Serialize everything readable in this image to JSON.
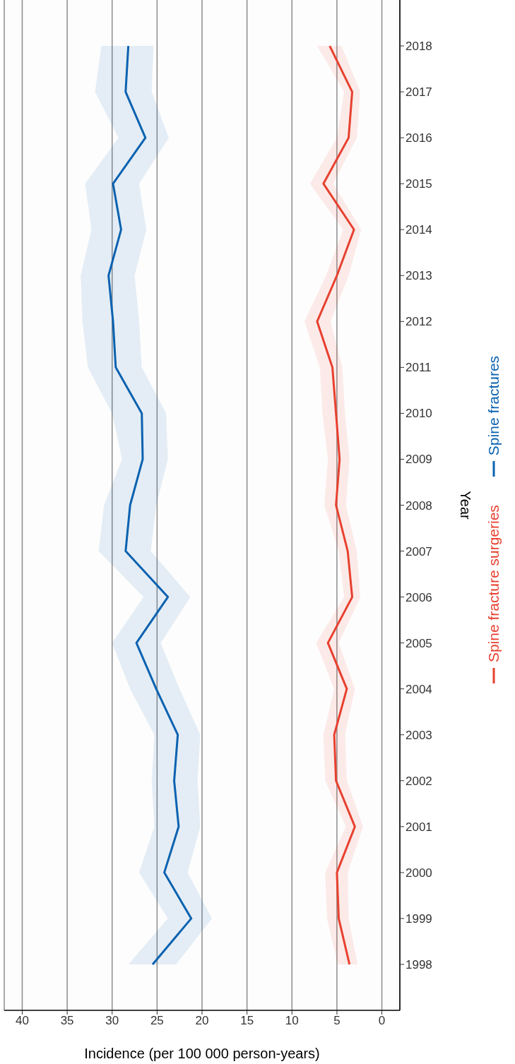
{
  "chart_data": {
    "type": "line",
    "orientation": "horizontal",
    "xlabel": "Incidence (per 100 000 person-years)",
    "ylabel": "Year",
    "x": [
      1998,
      1999,
      2000,
      2001,
      2002,
      2003,
      2004,
      2005,
      2006,
      2007,
      2008,
      2009,
      2010,
      2011,
      2012,
      2013,
      2014,
      2015,
      2016,
      2017,
      2018
    ],
    "series": [
      {
        "name": "Spine fracture surgeries",
        "color": "#e8402f",
        "values": [
          3.6,
          4.8,
          5.0,
          3.0,
          5.1,
          5.3,
          3.9,
          6.0,
          3.3,
          3.8,
          5.1,
          4.7,
          5.1,
          5.5,
          7.2,
          5.0,
          3.1,
          6.5,
          3.7,
          3.3,
          5.8
        ],
        "lower": [
          2.7,
          3.7,
          3.8,
          2.1,
          3.9,
          4.1,
          3.0,
          4.8,
          2.4,
          2.8,
          4.0,
          3.6,
          4.1,
          4.4,
          5.7,
          3.7,
          2.3,
          5.4,
          2.8,
          2.4,
          4.5
        ],
        "upper": [
          4.9,
          6.1,
          6.3,
          4.0,
          6.3,
          6.5,
          5.3,
          7.3,
          4.2,
          4.8,
          6.4,
          6.0,
          6.6,
          6.9,
          8.6,
          6.2,
          4.3,
          8.0,
          5.0,
          4.2,
          7.2
        ]
      },
      {
        "name": "Spine fractures",
        "color": "#0b62b0",
        "values": [
          25.5,
          21.2,
          24.2,
          22.6,
          23.1,
          22.7,
          25.1,
          27.3,
          23.8,
          28.5,
          28.0,
          26.6,
          26.7,
          29.6,
          29.9,
          30.4,
          29.0,
          29.9,
          26.3,
          28.5,
          28.2
        ],
        "lower": [
          22.9,
          18.9,
          21.6,
          20.2,
          20.5,
          20.2,
          22.5,
          24.6,
          21.3,
          25.7,
          25.1,
          23.8,
          24.0,
          26.7,
          27.0,
          27.5,
          26.2,
          27.0,
          23.7,
          25.6,
          25.4
        ],
        "upper": [
          28.2,
          23.8,
          27.0,
          25.3,
          25.6,
          25.3,
          28.0,
          30.0,
          26.5,
          31.5,
          30.9,
          28.9,
          30.0,
          32.7,
          33.3,
          33.5,
          32.3,
          33.0,
          29.3,
          31.9,
          31.2
        ]
      }
    ],
    "xlim": [
      42,
      -2
    ],
    "xticks": [
      40,
      35,
      30,
      25,
      20,
      15,
      10,
      5,
      0
    ],
    "ylim": [
      1997,
      2019
    ],
    "yticks": [
      1998,
      1999,
      2000,
      2001,
      2002,
      2003,
      2004,
      2005,
      2006,
      2007,
      2008,
      2009,
      2010,
      2011,
      2012,
      2013,
      2014,
      2015,
      2016,
      2017,
      2018
    ],
    "grid": "x",
    "legend": "right"
  }
}
